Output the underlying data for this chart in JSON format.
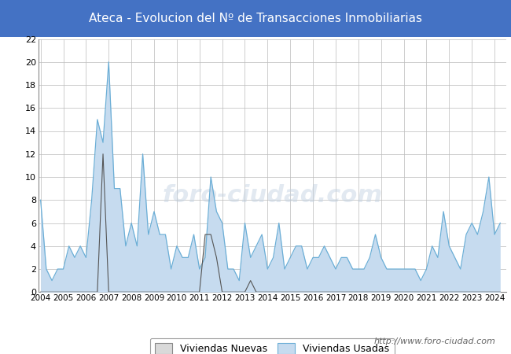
{
  "title": "Ateca - Evolucion del Nº de Transacciones Inmobiliarias",
  "title_bg_color": "#4472c4",
  "title_text_color": "#ffffff",
  "watermark_chart": "foro-ciudad.com",
  "watermark_url": "http://www.foro-ciudad.com",
  "legend_labels": [
    "Viviendas Nuevas",
    "Viviendas Usadas"
  ],
  "line_color_nuevas": "#555555",
  "line_color_usadas": "#6baed6",
  "fill_color_usadas": "#c6dbef",
  "fill_color_nuevas": "#d9d9d9",
  "ylim": [
    0,
    22
  ],
  "yticks": [
    0,
    2,
    4,
    6,
    8,
    10,
    12,
    14,
    16,
    18,
    20,
    22
  ],
  "grid_color": "#bbbbbb",
  "bg_color": "#ffffff",
  "plot_bg_color": "#ffffff",
  "quarters_per_year": 4,
  "start_year": 2004,
  "end_year": 2024,
  "viviendas_usadas": [
    8,
    2,
    1,
    2,
    2,
    4,
    3,
    4,
    3,
    8,
    15,
    13,
    20,
    9,
    9,
    4,
    6,
    4,
    12,
    5,
    7,
    5,
    5,
    2,
    4,
    3,
    3,
    5,
    2,
    3,
    10,
    7,
    6,
    2,
    2,
    1,
    6,
    3,
    4,
    5,
    2,
    3,
    6,
    2,
    3,
    4,
    4,
    2,
    3,
    3,
    4,
    3,
    2,
    3,
    3,
    2,
    2,
    2,
    3,
    5,
    3,
    2,
    2,
    2,
    2,
    2,
    2,
    1,
    2,
    4,
    3,
    7,
    4,
    3,
    2,
    5,
    6,
    5,
    7,
    10,
    5,
    6
  ],
  "viviendas_nuevas": [
    0,
    0,
    0,
    0,
    0,
    0,
    0,
    0,
    0,
    0,
    0,
    12,
    0,
    0,
    0,
    0,
    0,
    0,
    0,
    0,
    0,
    0,
    0,
    0,
    0,
    0,
    0,
    0,
    0,
    5,
    5,
    3,
    0,
    0,
    0,
    0,
    0,
    1,
    0,
    0,
    0,
    0,
    0,
    0,
    0,
    0,
    0,
    0,
    0,
    0,
    0,
    0,
    0,
    0,
    0,
    0,
    0,
    0,
    0,
    0,
    0,
    0,
    0,
    0,
    0,
    0,
    0,
    0,
    0,
    0,
    0,
    0,
    0,
    0,
    0,
    0,
    0,
    0,
    0,
    0,
    0,
    0
  ]
}
